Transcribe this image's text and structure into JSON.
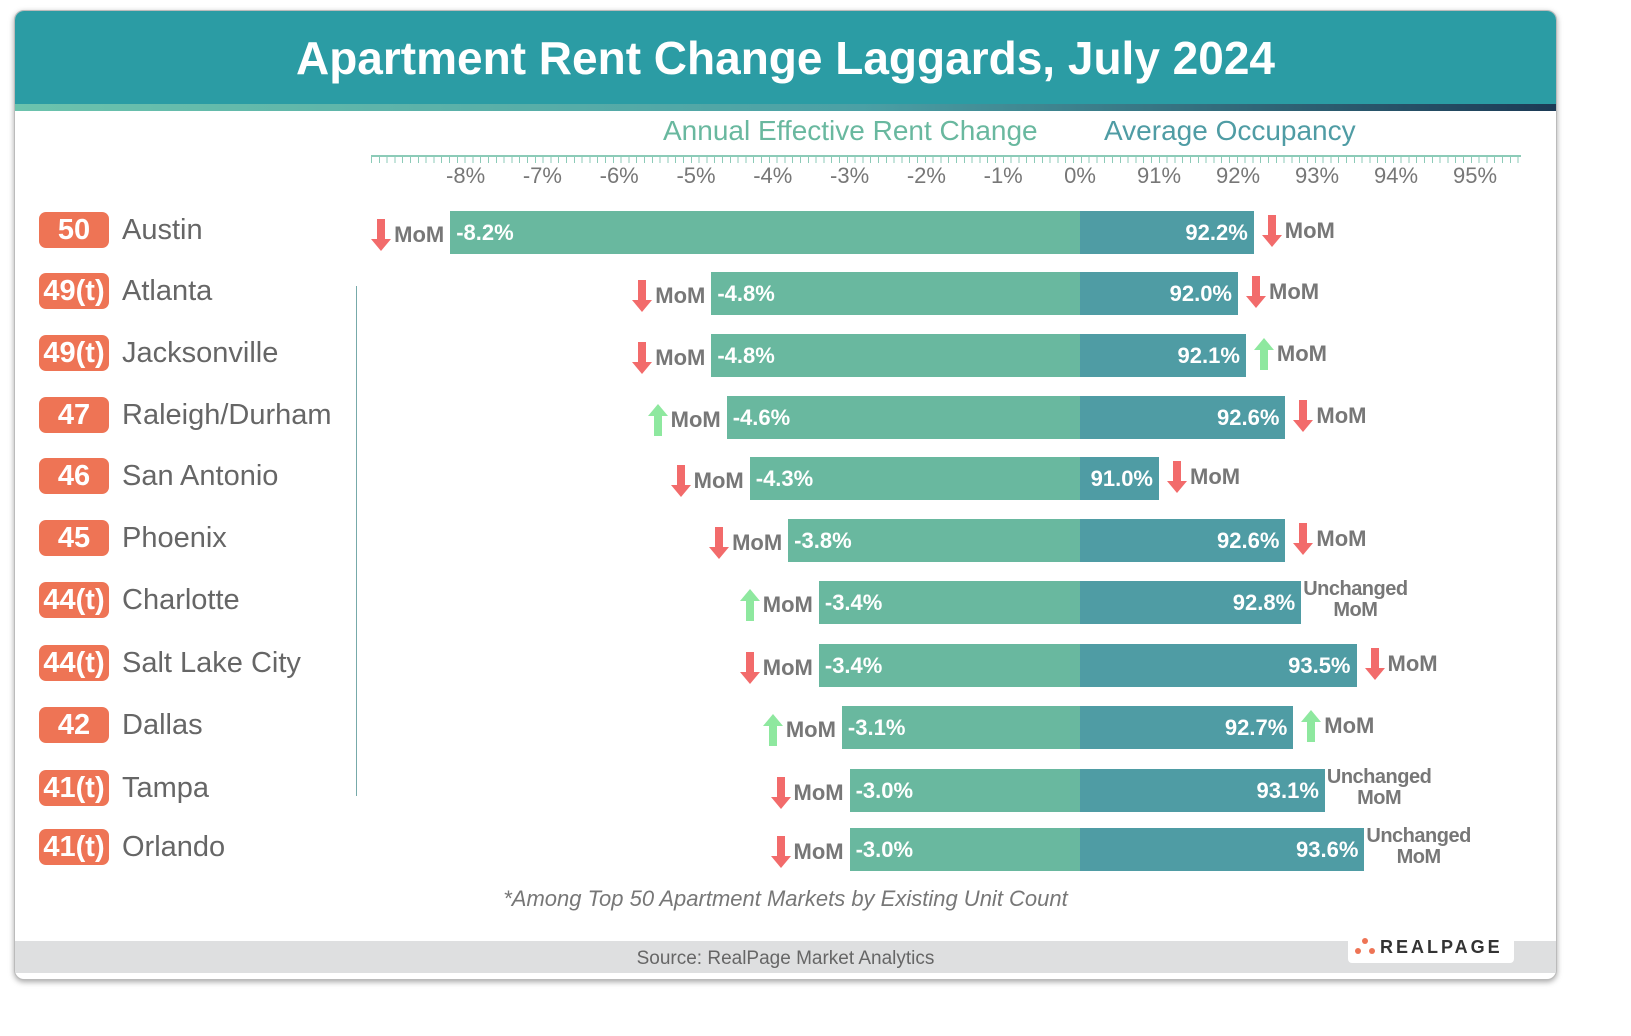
{
  "title": "Apartment Rent Change Laggards, July 2024",
  "chart_data": {
    "type": "bar",
    "title": "Apartment Rent Change Laggards, July 2024",
    "panels": [
      {
        "label": "Annual Effective Rent Change",
        "ticks": [
          "-8%",
          "-7%",
          "-6%",
          "-5%",
          "-4%",
          "-3%",
          "-2%",
          "-1%",
          "0%"
        ],
        "xlim": [
          -8.5,
          0
        ]
      },
      {
        "label": "Average Occupancy",
        "ticks": [
          "91%",
          "92%",
          "93%",
          "94%",
          "95%"
        ],
        "xlim": [
          90,
          95.5
        ]
      }
    ],
    "categories": [
      "Austin",
      "Atlanta",
      "Jacksonville",
      "Raleigh/Durham",
      "San Antonio",
      "Phoenix",
      "Charlotte",
      "Salt Lake City",
      "Dallas",
      "Tampa",
      "Orlando"
    ],
    "ranks": [
      "50",
      "49(t)",
      "49(t)",
      "47",
      "46",
      "45",
      "44(t)",
      "44(t)",
      "42",
      "41(t)",
      "41(t)"
    ],
    "series": [
      {
        "name": "Annual Effective Rent Change",
        "values": [
          -8.2,
          -4.8,
          -4.8,
          -4.6,
          -4.3,
          -3.8,
          -3.4,
          -3.4,
          -3.1,
          -3.0,
          -3.0
        ],
        "labels": [
          "-8.2%",
          "-4.8%",
          "-4.8%",
          "-4.6%",
          "-4.3%",
          "-3.8%",
          "-3.4%",
          "-3.4%",
          "-3.1%",
          "-3.0%",
          "-3.0%"
        ],
        "mom": [
          "down",
          "down",
          "down",
          "up",
          "down",
          "down",
          "up",
          "down",
          "up",
          "down",
          "down"
        ]
      },
      {
        "name": "Average Occupancy",
        "values": [
          92.2,
          92.0,
          92.1,
          92.6,
          91.0,
          92.6,
          92.8,
          93.5,
          92.7,
          93.1,
          93.6
        ],
        "labels": [
          "92.2%",
          "92.0%",
          "92.1%",
          "92.6%",
          "91.0%",
          "92.6%",
          "92.8%",
          "93.5%",
          "92.7%",
          "93.1%",
          "93.6%"
        ],
        "mom": [
          "down",
          "down",
          "up",
          "down",
          "down",
          "down",
          "unchanged",
          "down",
          "up",
          "unchanged",
          "unchanged"
        ]
      }
    ],
    "mom_label": "MoM",
    "unchanged_label": "Unchanged",
    "colors": {
      "rent": "#69b89f",
      "occupancy": "#4f9ca4",
      "up": "#8ee89f",
      "down": "#f26b6b",
      "rank": "#ee7455"
    }
  },
  "note": "*Among Top 50 Apartment Markets by Existing Unit Count",
  "source": "Source: RealPage Market Analytics",
  "logo": "REALPAGE"
}
